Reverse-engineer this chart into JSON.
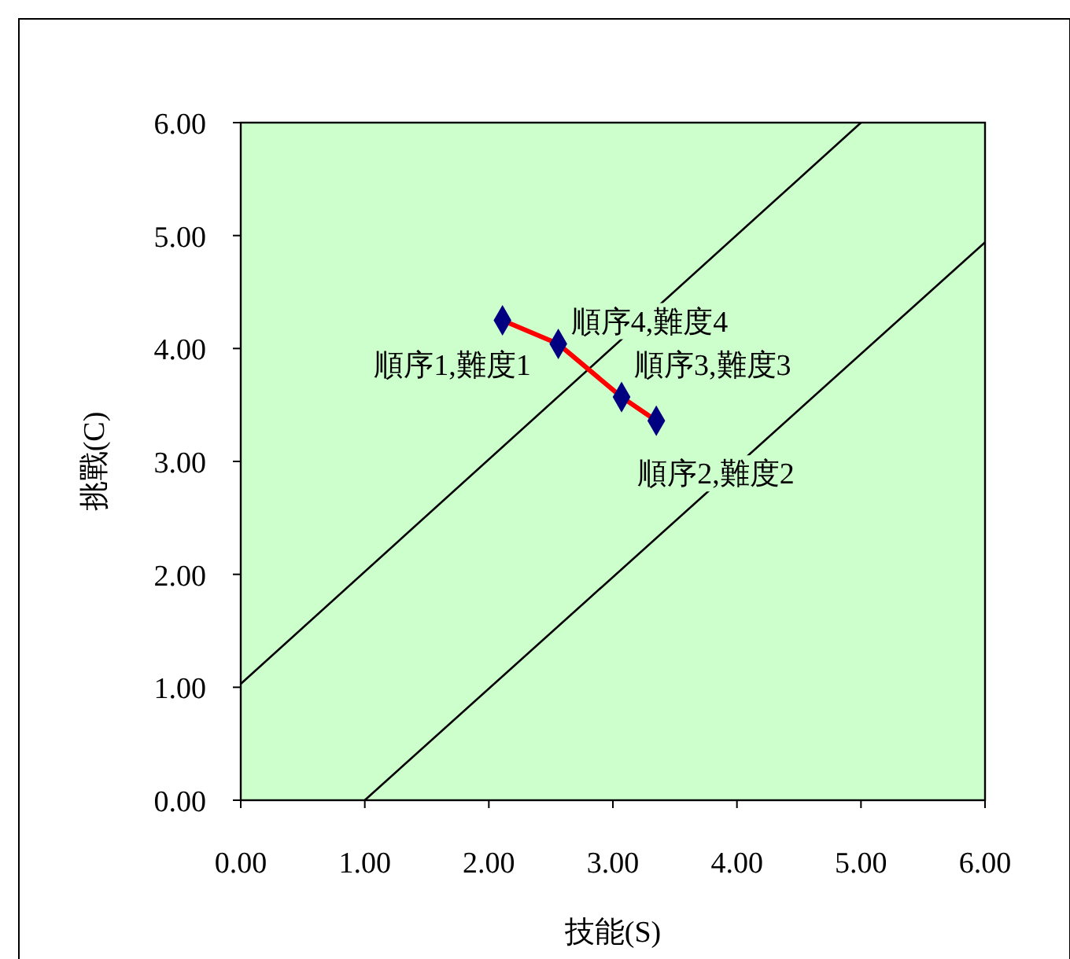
{
  "chart_data": {
    "type": "scatter",
    "xlabel": "技能(S)",
    "ylabel": "挑戰(C)",
    "xlim": [
      0,
      6
    ],
    "ylim": [
      0,
      6
    ],
    "xticks": [
      {
        "value": 0,
        "label": "0.00"
      },
      {
        "value": 1,
        "label": "1.00"
      },
      {
        "value": 2,
        "label": "2.00"
      },
      {
        "value": 3,
        "label": "3.00"
      },
      {
        "value": 4,
        "label": "4.00"
      },
      {
        "value": 5,
        "label": "5.00"
      },
      {
        "value": 6,
        "label": "6.00"
      }
    ],
    "yticks": [
      {
        "value": 0,
        "label": "0.00"
      },
      {
        "value": 1,
        "label": "1.00"
      },
      {
        "value": 2,
        "label": "2.00"
      },
      {
        "value": 3,
        "label": "3.00"
      },
      {
        "value": 4,
        "label": "4.00"
      },
      {
        "value": 5,
        "label": "5.00"
      },
      {
        "value": 6,
        "label": "6.00"
      }
    ],
    "grid": false,
    "series": [
      {
        "type": "line",
        "color": "#000000",
        "x": [
          0,
          5.0
        ],
        "values": [
          1.03,
          6
        ],
        "marker": "none"
      },
      {
        "type": "line",
        "color": "#000000",
        "x": [
          1.0,
          6
        ],
        "values": [
          0,
          4.94
        ],
        "marker": "none"
      },
      {
        "type": "line",
        "color": "#ff0000",
        "x": [
          2.11,
          2.56,
          3.07,
          3.35
        ],
        "values": [
          4.25,
          4.04,
          3.57,
          3.36
        ],
        "marker": "none"
      },
      {
        "color": "#000080",
        "x": [
          2.11,
          2.56,
          3.07,
          3.35
        ],
        "values": [
          4.25,
          4.04,
          3.57,
          3.36
        ],
        "marker": "diamond"
      }
    ],
    "annotations": [
      {
        "text": "順序1,難度1",
        "x": 2.11,
        "y": 4.25
      },
      {
        "text": "順序4,難度4",
        "x": 2.56,
        "y": 4.04
      },
      {
        "text": "順序3,難度3",
        "x": 3.07,
        "y": 3.57
      },
      {
        "text": "順序2,難度2",
        "x": 3.35,
        "y": 3.36
      }
    ]
  }
}
